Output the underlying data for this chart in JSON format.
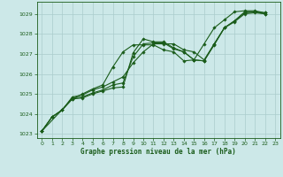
{
  "title": "Graphe pression niveau de la mer (hPa)",
  "bg_color": "#cce8e8",
  "grid_color": "#aacccc",
  "line_color": "#1a5c1a",
  "xlim": [
    -0.5,
    23.5
  ],
  "ylim": [
    1022.8,
    1029.6
  ],
  "yticks": [
    1023,
    1024,
    1025,
    1026,
    1027,
    1028,
    1029
  ],
  "xticks": [
    0,
    1,
    2,
    3,
    4,
    5,
    6,
    7,
    8,
    9,
    10,
    11,
    12,
    13,
    14,
    15,
    16,
    17,
    18,
    19,
    20,
    21,
    22,
    23
  ],
  "series": [
    {
      "x": [
        0,
        1,
        2,
        3,
        4,
        5,
        6,
        7,
        8,
        9,
        10,
        11,
        12,
        13,
        14,
        15,
        16,
        17,
        18,
        19,
        20,
        21,
        22
      ],
      "y": [
        1023.15,
        1023.85,
        1024.2,
        1024.75,
        1024.8,
        1025.0,
        1025.15,
        1025.3,
        1025.35,
        1027.05,
        1027.75,
        1027.6,
        1027.6,
        1027.3,
        1027.1,
        1026.7,
        1026.65,
        1027.45,
        1028.3,
        1028.65,
        1029.05,
        1029.1,
        1029.05
      ]
    },
    {
      "x": [
        0,
        1,
        2,
        3,
        4,
        5,
        6,
        7,
        8,
        9,
        10,
        11,
        12,
        13,
        14,
        15,
        16,
        17,
        18,
        19,
        20,
        21,
        22
      ],
      "y": [
        1023.15,
        1023.85,
        1024.2,
        1024.8,
        1024.85,
        1025.05,
        1025.2,
        1025.45,
        1025.55,
        1026.85,
        1027.5,
        1027.55,
        1027.55,
        1027.25,
        1027.1,
        1026.7,
        1026.65,
        1027.5,
        1028.3,
        1028.6,
        1029.0,
        1029.05,
        1029.0
      ]
    },
    {
      "x": [
        0,
        1,
        2,
        3,
        4,
        5,
        6,
        7,
        8,
        9,
        10,
        11,
        12,
        13,
        14,
        15,
        16,
        17,
        18,
        19,
        20,
        21,
        22
      ],
      "y": [
        1023.15,
        1023.85,
        1024.2,
        1024.85,
        1024.95,
        1025.2,
        1025.35,
        1025.6,
        1025.85,
        1026.55,
        1027.1,
        1027.5,
        1027.5,
        1027.5,
        1027.2,
        1027.1,
        1026.7,
        1027.5,
        1028.3,
        1028.65,
        1029.1,
        1029.1,
        1029.0
      ]
    },
    {
      "x": [
        0,
        3,
        4,
        5,
        6,
        7,
        8,
        9,
        10,
        11,
        12,
        13,
        14,
        15,
        16,
        17,
        18,
        19,
        20,
        21,
        22
      ],
      "y": [
        1023.15,
        1024.75,
        1025.0,
        1025.25,
        1025.45,
        1026.35,
        1027.1,
        1027.45,
        1027.45,
        1027.45,
        1027.2,
        1027.1,
        1026.65,
        1026.7,
        1027.5,
        1028.3,
        1028.7,
        1029.1,
        1029.15,
        1029.15,
        1029.05
      ]
    }
  ]
}
